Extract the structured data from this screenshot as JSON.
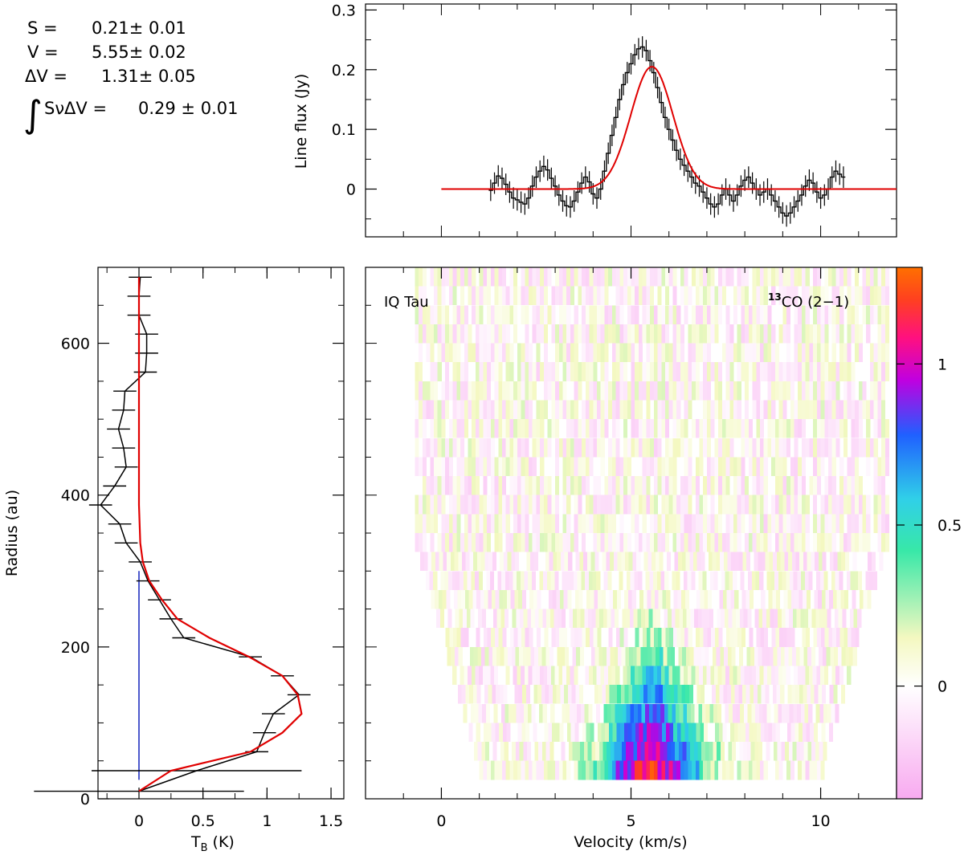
{
  "fit_results": {
    "s_label": "S =",
    "s_value": "0.21± 0.01",
    "v_label": "V =",
    "v_value": "5.55± 0.02",
    "dv_label": "ΔV =",
    "dv_value": "1.31± 0.05",
    "integral_symbol": "∫",
    "int_label": "SνΔV =",
    "int_value": "0.29 ± 0.01"
  },
  "chart_data": [
    {
      "id": "spectrum",
      "type": "line",
      "ylabel": "Line flux (Jy)",
      "xlim": [
        -2,
        12
      ],
      "ylim": [
        -0.08,
        0.31
      ],
      "y_ticks": [
        0,
        0.1,
        0.2,
        0.3
      ],
      "y_tick_labels": [
        "0",
        "0.1",
        "0.2",
        "0.3"
      ],
      "x_ticks": [
        0,
        5,
        10
      ],
      "error_bar": 0.018,
      "series": [
        {
          "style": "data-step-with-errorbars",
          "color": "#000000",
          "x": [
            1.3,
            1.4,
            1.5,
            1.6,
            1.7,
            1.8,
            1.9,
            2.0,
            2.1,
            2.2,
            2.3,
            2.4,
            2.5,
            2.6,
            2.7,
            2.8,
            2.9,
            3.0,
            3.1,
            3.2,
            3.3,
            3.4,
            3.5,
            3.6,
            3.7,
            3.8,
            3.9,
            4.0,
            4.1,
            4.2,
            4.3,
            4.4,
            4.5,
            4.6,
            4.7,
            4.8,
            4.9,
            5.0,
            5.1,
            5.2,
            5.3,
            5.4,
            5.5,
            5.6,
            5.7,
            5.8,
            5.9,
            6.0,
            6.1,
            6.2,
            6.3,
            6.4,
            6.5,
            6.6,
            6.7,
            6.8,
            6.9,
            7.0,
            7.1,
            7.2,
            7.3,
            7.4,
            7.5,
            7.6,
            7.7,
            7.8,
            7.9,
            8.0,
            8.1,
            8.2,
            8.3,
            8.4,
            8.5,
            8.6,
            8.7,
            8.8,
            8.9,
            9.0,
            9.1,
            9.2,
            9.3,
            9.4,
            9.5,
            9.6,
            9.7,
            9.8,
            9.9,
            10.0,
            10.1,
            10.2,
            10.3,
            10.4,
            10.5,
            10.6
          ],
          "values": [
            -0.002,
            0.01,
            0.022,
            0.018,
            0.008,
            -0.005,
            -0.015,
            -0.018,
            -0.022,
            -0.025,
            -0.015,
            0.005,
            0.02,
            0.03,
            0.038,
            0.032,
            0.018,
            0.005,
            -0.01,
            -0.02,
            -0.028,
            -0.03,
            -0.02,
            -0.005,
            0.01,
            0.02,
            0.012,
            -0.008,
            -0.015,
            0.0,
            0.03,
            0.06,
            0.09,
            0.12,
            0.15,
            0.175,
            0.195,
            0.21,
            0.225,
            0.235,
            0.238,
            0.232,
            0.215,
            0.195,
            0.17,
            0.145,
            0.12,
            0.1,
            0.082,
            0.065,
            0.05,
            0.04,
            0.03,
            0.02,
            0.01,
            0.005,
            -0.005,
            -0.015,
            -0.025,
            -0.03,
            -0.025,
            -0.01,
            0.0,
            -0.01,
            -0.02,
            -0.01,
            0.005,
            0.015,
            0.02,
            0.01,
            0.0,
            -0.01,
            -0.005,
            0.0,
            -0.01,
            -0.02,
            -0.03,
            -0.04,
            -0.045,
            -0.04,
            -0.03,
            -0.02,
            -0.01,
            0.005,
            0.015,
            0.01,
            -0.005,
            -0.015,
            -0.01,
            0.0,
            0.02,
            0.03,
            0.025,
            0.02
          ]
        },
        {
          "style": "gaussian-fit",
          "color": "#e00000",
          "amplitude": 0.205,
          "center": 5.55,
          "fwhm": 1.31,
          "x_range": [
            0,
            12
          ]
        }
      ]
    },
    {
      "id": "radial-profile",
      "type": "line",
      "ylabel": "Radius (au)",
      "xlabel": "T",
      "xlabel_sub": "B",
      "xlabel_unit": "(K)",
      "xlim": [
        -0.32,
        1.6
      ],
      "ylim": [
        0,
        700
      ],
      "x_ticks": [
        0,
        0.5,
        1,
        1.5
      ],
      "x_tick_labels": [
        "0",
        "0.5",
        "1",
        "1.5"
      ],
      "y_ticks": [
        0,
        200,
        400,
        600
      ],
      "y_tick_labels": [
        "0",
        "200",
        "400",
        "600"
      ],
      "series": [
        {
          "style": "data-with-errorbars",
          "color": "#000000",
          "error_bar": 0.09,
          "radius": [
            10,
            37,
            62,
            87,
            112,
            137,
            162,
            187,
            212,
            237,
            262,
            287,
            312,
            337,
            362,
            387,
            412,
            437,
            462,
            487,
            512,
            537,
            562,
            587,
            612,
            637,
            662,
            687
          ],
          "values": [
            0.0,
            0.45,
            0.92,
            0.98,
            1.05,
            1.25,
            1.12,
            0.87,
            0.35,
            0.25,
            0.16,
            0.07,
            0.01,
            -0.1,
            -0.15,
            -0.3,
            -0.19,
            -0.1,
            -0.12,
            -0.16,
            -0.12,
            -0.11,
            0.05,
            0.06,
            0.06,
            0.0,
            0.0,
            0.01
          ]
        },
        {
          "style": "model-fit",
          "color": "#e00000",
          "radius": [
            10,
            37,
            62,
            87,
            112,
            137,
            162,
            187,
            212,
            237,
            262,
            287,
            312,
            337,
            362,
            387,
            412,
            437,
            462,
            487,
            512,
            537,
            562,
            587,
            612,
            637,
            662,
            687
          ],
          "values": [
            0.0,
            0.25,
            0.87,
            1.12,
            1.27,
            1.24,
            1.12,
            0.86,
            0.55,
            0.3,
            0.18,
            0.08,
            0.03,
            0.01,
            0.005,
            0.0,
            0.0,
            0.0,
            0.0,
            0.0,
            0.0,
            0.0,
            0.0,
            0.0,
            0.0,
            0.0,
            0.0,
            0.0
          ]
        },
        {
          "style": "vertical-line",
          "color": "#2030c0",
          "x": 0,
          "radius_range": [
            25,
            300
          ]
        }
      ]
    },
    {
      "id": "position-velocity-map",
      "type": "heatmap",
      "xlabel": "Velocity (km/s)",
      "xlim": [
        -2,
        12
      ],
      "ylim": [
        0,
        700
      ],
      "x_ticks": [
        0,
        5,
        10
      ],
      "x_tick_labels": [
        "0",
        "5",
        "10"
      ],
      "source_label": "IQ Tau",
      "line_label_sup": "13",
      "line_label": "CO (2−1)",
      "colorbar": {
        "range": [
          -0.35,
          1.3
        ],
        "ticks": [
          0,
          0.5,
          1
        ],
        "tick_labels": [
          "0",
          "0.5",
          "1"
        ],
        "colors": [
          "#f8aaf0",
          "#ffffff",
          "#f4f8c0",
          "#38e8a8",
          "#30d0e8",
          "#2060ff",
          "#c000e0",
          "#ff1080",
          "#ff4020",
          "#ff7000"
        ]
      }
    }
  ]
}
